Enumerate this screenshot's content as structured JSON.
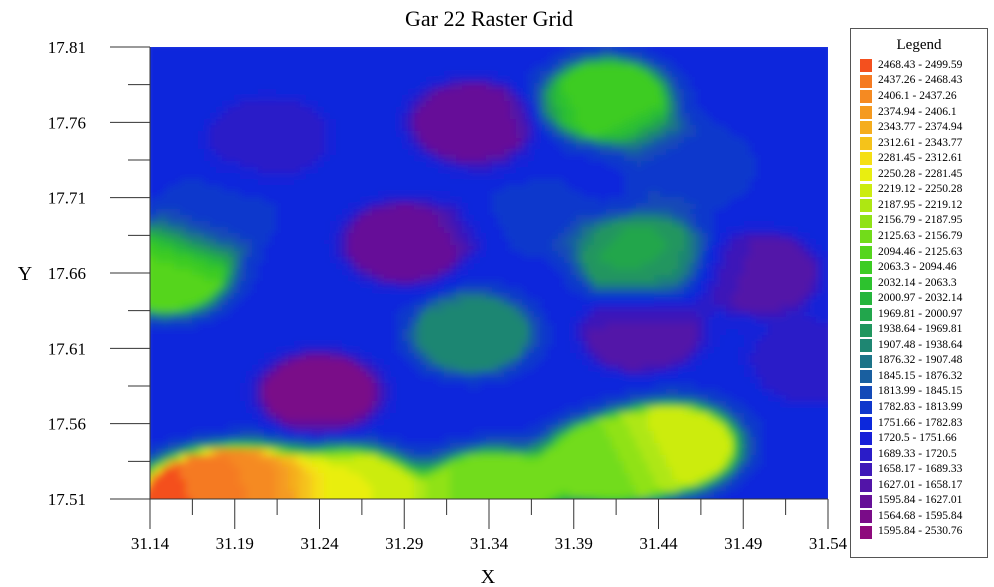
{
  "chart_data": {
    "type": "heatmap",
    "title": "Gar 22 Raster Grid",
    "xlabel": "X",
    "ylabel": "Y",
    "x_ticks": [
      "31.14",
      "31.19",
      "31.24",
      "31.29",
      "31.34",
      "31.39",
      "31.44",
      "31.49",
      "31.54"
    ],
    "y_ticks": [
      "17.81",
      "17.76",
      "17.71",
      "17.66",
      "17.61",
      "17.56",
      "17.51"
    ],
    "xlim": [
      31.14,
      31.54
    ],
    "ylim": [
      17.51,
      17.81
    ],
    "grid": false,
    "legend_position": "right",
    "legend": {
      "title": "Legend",
      "items": [
        {
          "label": "2468.43 - 2499.59",
          "color": "#f4501e"
        },
        {
          "label": "2437.26 - 2468.43",
          "color": "#f57a22"
        },
        {
          "label": "2406.1 - 2437.26",
          "color": "#f58a22"
        },
        {
          "label": "2374.94 - 2406.1",
          "color": "#f59a20"
        },
        {
          "label": "2343.77 - 2374.94",
          "color": "#f5ad1e"
        },
        {
          "label": "2312.61 - 2343.77",
          "color": "#f5c31a"
        },
        {
          "label": "2281.45 - 2312.61",
          "color": "#f5df14"
        },
        {
          "label": "2250.28 - 2281.45",
          "color": "#e9ee10"
        },
        {
          "label": "2219.12 - 2250.28",
          "color": "#ccec10"
        },
        {
          "label": "2187.95 - 2219.12",
          "color": "#aee712"
        },
        {
          "label": "2156.79 - 2187.95",
          "color": "#90e216"
        },
        {
          "label": "2125.63 - 2156.79",
          "color": "#72dc1a"
        },
        {
          "label": "2094.46 - 2125.63",
          "color": "#55d51e"
        },
        {
          "label": "2063.3 - 2094.46",
          "color": "#3ccc24"
        },
        {
          "label": "2032.14 - 2063.3",
          "color": "#2dc22e"
        },
        {
          "label": "2000.97 - 2032.14",
          "color": "#25b53c"
        },
        {
          "label": "1969.81 - 2000.97",
          "color": "#22a64c"
        },
        {
          "label": "1938.64 - 1969.81",
          "color": "#20965e"
        },
        {
          "label": "1907.48 - 1938.64",
          "color": "#1e8672"
        },
        {
          "label": "1876.32 - 1907.48",
          "color": "#1c7488"
        },
        {
          "label": "1845.15 - 1876.32",
          "color": "#195fa0"
        },
        {
          "label": "1813.99 - 1845.15",
          "color": "#144ab8"
        },
        {
          "label": "1782.83 - 1813.99",
          "color": "#0f37cc"
        },
        {
          "label": "1751.66 - 1782.83",
          "color": "#0c28dc"
        },
        {
          "label": "1720.5 - 1751.66",
          "color": "#1720d8"
        },
        {
          "label": "1689.33 - 1720.5",
          "color": "#2a1cc8"
        },
        {
          "label": "1658.17 - 1689.33",
          "color": "#3e18b8"
        },
        {
          "label": "1627.01 - 1658.17",
          "color": "#5214a8"
        },
        {
          "label": "1595.84 - 1627.01",
          "color": "#661098"
        },
        {
          "label": "1564.68 - 1595.84",
          "color": "#7a0c88"
        },
        {
          "label": "1595.84 - 2530.76",
          "color": "#8e0a7c"
        }
      ]
    },
    "sample_points": [
      {
        "x": 31.17,
        "y": 17.51,
        "value": 2480
      },
      {
        "x": 31.2,
        "y": 17.515,
        "value": 2420
      },
      {
        "x": 31.26,
        "y": 17.515,
        "value": 2250
      },
      {
        "x": 31.34,
        "y": 17.515,
        "value": 2150
      },
      {
        "x": 31.45,
        "y": 17.545,
        "value": 2250
      },
      {
        "x": 31.41,
        "y": 17.535,
        "value": 2130
      },
      {
        "x": 31.15,
        "y": 17.66,
        "value": 2110
      },
      {
        "x": 31.41,
        "y": 17.775,
        "value": 2080
      },
      {
        "x": 31.43,
        "y": 17.67,
        "value": 1980
      },
      {
        "x": 31.33,
        "y": 17.76,
        "value": 1600
      },
      {
        "x": 31.29,
        "y": 17.68,
        "value": 1600
      },
      {
        "x": 31.24,
        "y": 17.58,
        "value": 1580
      },
      {
        "x": 31.43,
        "y": 17.62,
        "value": 1650
      },
      {
        "x": 31.5,
        "y": 17.66,
        "value": 1650
      },
      {
        "x": 31.21,
        "y": 17.75,
        "value": 1700
      },
      {
        "x": 31.33,
        "y": 17.62,
        "value": 1920
      },
      {
        "x": 31.46,
        "y": 17.73,
        "value": 1800
      },
      {
        "x": 31.53,
        "y": 17.6,
        "value": 1700
      },
      {
        "x": 31.18,
        "y": 17.7,
        "value": 1790
      },
      {
        "x": 31.36,
        "y": 17.7,
        "value": 1790
      },
      {
        "x": 31.53,
        "y": 17.78,
        "value": 1760
      }
    ]
  }
}
